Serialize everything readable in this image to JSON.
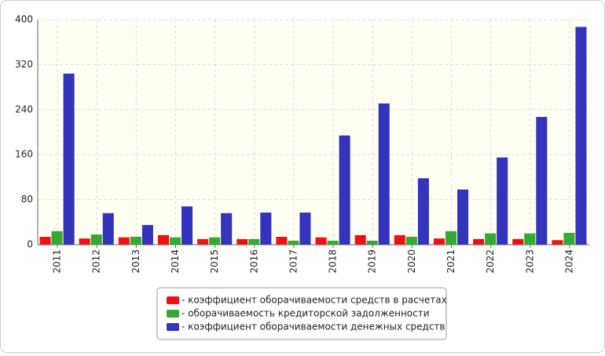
{
  "chart_data": {
    "type": "bar",
    "categories": [
      "2011",
      "2012",
      "2013",
      "2014",
      "2015",
      "2016",
      "2017",
      "2018",
      "2019",
      "2020",
      "2021",
      "2022",
      "2023",
      "2024"
    ],
    "series": [
      {
        "name": "- коэффициент оборачиваемости средств в расчетах",
        "color": "#ee1111",
        "values": [
          14,
          11,
          13,
          17,
          10,
          10,
          14,
          13,
          17,
          17,
          11,
          10,
          10,
          8
        ]
      },
      {
        "name": "- оборачиваемость кредиторской задолженности",
        "color": "#33aa33",
        "values": [
          24,
          18,
          14,
          13,
          13,
          10,
          7,
          7,
          7,
          14,
          24,
          20,
          20,
          21
        ]
      },
      {
        "name": "- коэффициент оборачиваемости денежных средств",
        "color": "#3333bb",
        "values": [
          304,
          56,
          35,
          68,
          56,
          57,
          57,
          194,
          251,
          118,
          98,
          155,
          227,
          387
        ]
      }
    ],
    "ylim": [
      0,
      400
    ],
    "yticks": [
      0,
      80,
      160,
      240,
      320,
      400
    ],
    "grid": true
  }
}
